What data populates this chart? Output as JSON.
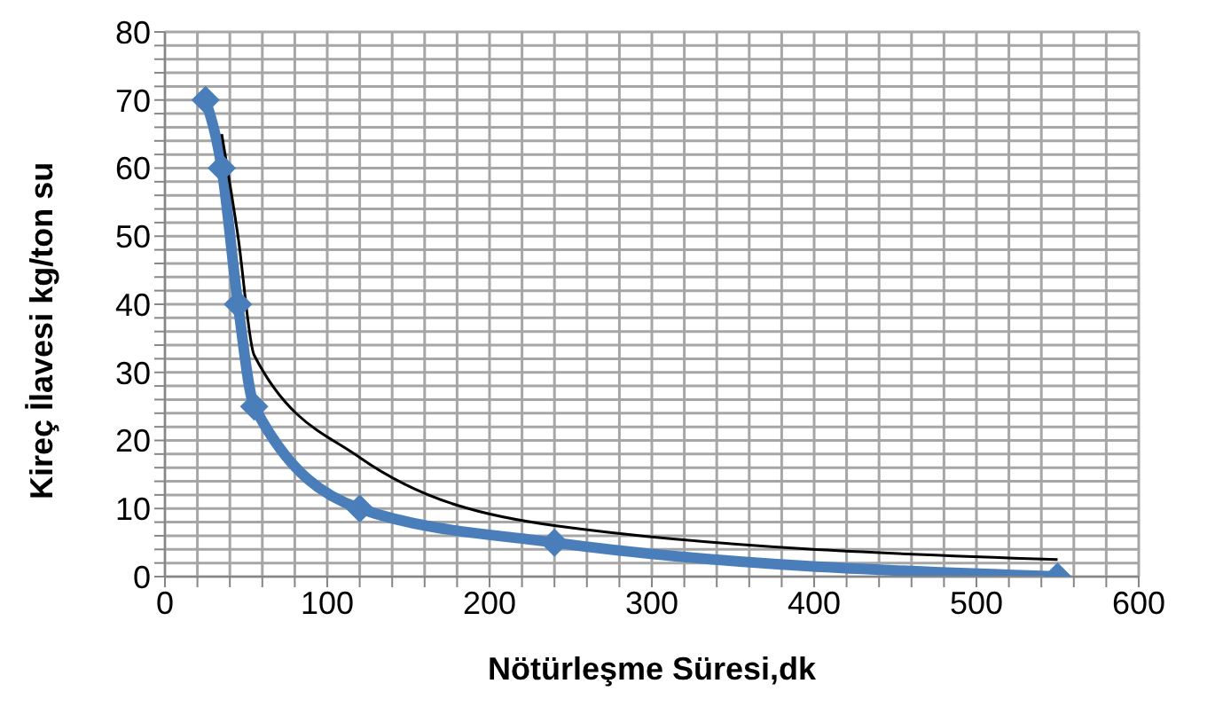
{
  "chart_data": {
    "type": "line",
    "xlabel": "Nötürleşme Süresi,dk",
    "ylabel": "Kireç İlavesi kg/ton su",
    "xlim": [
      0,
      600
    ],
    "ylim": [
      0,
      80
    ],
    "xticks": [
      0,
      {
        "value": 20,
        "label": null
      },
      {
        "value": 40,
        "label": null
      },
      {
        "value": 60,
        "label": null
      },
      {
        "value": 80,
        "label": null
      },
      100,
      {
        "value": 120,
        "label": null
      },
      {
        "value": 140,
        "label": null
      },
      {
        "value": 160,
        "label": null
      },
      {
        "value": 180,
        "label": null
      },
      200,
      {
        "value": 220,
        "label": null
      },
      {
        "value": 240,
        "label": null
      },
      {
        "value": 260,
        "label": null
      },
      {
        "value": 280,
        "label": null
      },
      300,
      {
        "value": 320,
        "label": null
      },
      {
        "value": 340,
        "label": null
      },
      {
        "value": 360,
        "label": null
      },
      {
        "value": 380,
        "label": null
      },
      400,
      {
        "value": 420,
        "label": null
      },
      {
        "value": 440,
        "label": null
      },
      {
        "value": 460,
        "label": null
      },
      {
        "value": 480,
        "label": null
      },
      500,
      {
        "value": 520,
        "label": null
      },
      {
        "value": 540,
        "label": null
      },
      {
        "value": 560,
        "label": null
      },
      {
        "value": 580,
        "label": null
      },
      600
    ],
    "yticks": [
      0,
      {
        "value": 2,
        "label": null
      },
      {
        "value": 4,
        "label": null
      },
      {
        "value": 6,
        "label": null
      },
      {
        "value": 8,
        "label": null
      },
      10,
      {
        "value": 12,
        "label": null
      },
      {
        "value": 14,
        "label": null
      },
      {
        "value": 16,
        "label": null
      },
      {
        "value": 18,
        "label": null
      },
      20,
      {
        "value": 22,
        "label": null
      },
      {
        "value": 24,
        "label": null
      },
      {
        "value": 26,
        "label": null
      },
      {
        "value": 28,
        "label": null
      },
      30,
      {
        "value": 32,
        "label": null
      },
      {
        "value": 34,
        "label": null
      },
      {
        "value": 36,
        "label": null
      },
      {
        "value": 38,
        "label": null
      },
      40,
      {
        "value": 42,
        "label": null
      },
      {
        "value": 44,
        "label": null
      },
      {
        "value": 46,
        "label": null
      },
      {
        "value": 48,
        "label": null
      },
      50,
      {
        "value": 52,
        "label": null
      },
      {
        "value": 54,
        "label": null
      },
      {
        "value": 56,
        "label": null
      },
      {
        "value": 58,
        "label": null
      },
      60,
      {
        "value": 62,
        "label": null
      },
      {
        "value": 64,
        "label": null
      },
      {
        "value": 66,
        "label": null
      },
      {
        "value": 68,
        "label": null
      },
      70,
      {
        "value": 72,
        "label": null
      },
      {
        "value": 74,
        "label": null
      },
      {
        "value": 76,
        "label": null
      },
      {
        "value": 78,
        "label": null
      },
      80
    ],
    "grid": true,
    "series": [
      {
        "color": "#4a7ebb",
        "marker": "diamond",
        "x": [
          25,
          35,
          45,
          55,
          120,
          240,
          550
        ],
        "values": [
          70,
          60,
          40,
          25,
          10,
          5,
          0
        ]
      },
      {
        "color": "#000000",
        "marker": "none",
        "x": [
          35,
          45,
          55,
          120,
          240,
          550
        ],
        "values": [
          65,
          50,
          32.5,
          17.5,
          7.5,
          2.5
        ]
      }
    ]
  }
}
